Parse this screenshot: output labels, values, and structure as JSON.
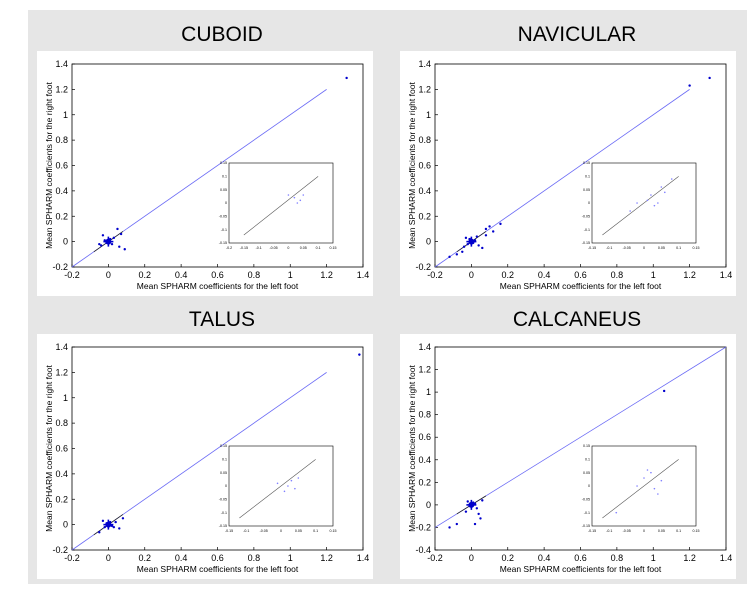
{
  "chart_data": [
    {
      "type": "scatter",
      "title": "CUBOID",
      "xlabel": "Mean SPHARM coefficients for the left foot",
      "ylabel": "Mean SPHARM coefficients for the right foot",
      "xlim": [
        -0.2,
        1.4
      ],
      "ylim": [
        -0.2,
        1.4
      ],
      "xticks": [
        "-0.2",
        "0",
        "0.2",
        "0.4",
        "0.6",
        "0.8",
        "1",
        "1.2",
        "1.4"
      ],
      "yticks": [
        "-0.2",
        "0",
        "0.2",
        "0.4",
        "0.6",
        "0.8",
        "1",
        "1.2",
        "1.4"
      ],
      "points": [
        [
          1.31,
          1.29
        ],
        [
          0.05,
          0.1
        ],
        [
          0.07,
          0.06
        ],
        [
          -0.03,
          0.05
        ],
        [
          0.09,
          -0.06
        ],
        [
          0.06,
          -0.04
        ],
        [
          -0.05,
          -0.02
        ],
        [
          0.0,
          0.0
        ],
        [
          0.01,
          0.02
        ],
        [
          -0.01,
          -0.01
        ],
        [
          0.02,
          -0.02
        ],
        [
          -0.02,
          0.01
        ],
        [
          0.03,
          0.03
        ],
        [
          -0.04,
          -0.03
        ]
      ],
      "fit_line": [
        [
          -0.2,
          -0.2
        ],
        [
          1.2,
          1.2
        ]
      ],
      "inset": {
        "xticks": [
          "-0.2",
          "-0.15",
          "-0.1",
          "-0.05",
          "0",
          "0.05",
          "0.1",
          "0.15"
        ],
        "yticks": [
          "-0.15",
          "-0.1",
          "-0.05",
          "0",
          "0.05",
          "0.1",
          "0.15"
        ],
        "xlim": [
          -0.2,
          0.15
        ],
        "ylim": [
          -0.15,
          0.15
        ],
        "points": [
          [
            0.02,
            0.02
          ],
          [
            0.04,
            0.01
          ],
          [
            0.0,
            0.03
          ],
          [
            0.05,
            0.03
          ],
          [
            0.03,
            0.0
          ]
        ],
        "fit_line": [
          [
            -0.15,
            -0.12
          ],
          [
            0.1,
            0.1
          ]
        ]
      }
    },
    {
      "type": "scatter",
      "title": "NAVICULAR",
      "xlabel": "Mean SPHARM coefficients for the left foot",
      "ylabel": "Mean SPHARM coefficients for the right foot",
      "xlim": [
        -0.2,
        1.4
      ],
      "ylim": [
        -0.2,
        1.4
      ],
      "xticks": [
        "-0.2",
        "0",
        "0.2",
        "0.4",
        "0.6",
        "0.8",
        "1",
        "1.2",
        "1.4"
      ],
      "yticks": [
        "-0.2",
        "0",
        "0.2",
        "0.4",
        "0.6",
        "0.8",
        "1",
        "1.2",
        "1.4"
      ],
      "points": [
        [
          1.31,
          1.29
        ],
        [
          1.2,
          1.23
        ],
        [
          0.16,
          0.14
        ],
        [
          0.1,
          0.12
        ],
        [
          0.08,
          0.1
        ],
        [
          0.12,
          0.08
        ],
        [
          -0.05,
          -0.08
        ],
        [
          -0.08,
          -0.1
        ],
        [
          -0.12,
          -0.12
        ],
        [
          0.06,
          -0.05
        ],
        [
          0.08,
          0.05
        ],
        [
          0.04,
          -0.03
        ],
        [
          -0.03,
          0.03
        ],
        [
          0.0,
          0.0
        ],
        [
          0.02,
          0.01
        ],
        [
          -0.02,
          -0.02
        ],
        [
          0.01,
          -0.01
        ],
        [
          -0.01,
          0.02
        ],
        [
          0.03,
          0.04
        ],
        [
          -0.04,
          -0.04
        ]
      ],
      "fit_line": [
        [
          -0.2,
          -0.2
        ],
        [
          1.2,
          1.2
        ]
      ],
      "inset": {
        "xticks": [
          "-0.15",
          "-0.1",
          "-0.05",
          "0",
          "0.05",
          "0.1",
          "0.15"
        ],
        "yticks": [
          "-0.15",
          "-0.1",
          "-0.05",
          "0",
          "0.05",
          "0.1",
          "0.15"
        ],
        "xlim": [
          -0.15,
          0.15
        ],
        "ylim": [
          -0.15,
          0.15
        ],
        "points": [
          [
            0.02,
            0.03
          ],
          [
            0.05,
            0.06
          ],
          [
            -0.02,
            0.0
          ],
          [
            0.03,
            -0.01
          ],
          [
            0.06,
            0.04
          ],
          [
            0.08,
            0.09
          ],
          [
            -0.04,
            -0.03
          ],
          [
            0.01,
            0.01
          ],
          [
            0.04,
            0.0
          ]
        ],
        "fit_line": [
          [
            -0.12,
            -0.12
          ],
          [
            0.1,
            0.1
          ]
        ]
      }
    },
    {
      "type": "scatter",
      "title": "TALUS",
      "xlabel": "Mean SPHARM coefficients for the left foot",
      "ylabel": "Mean SPHARM coefficients for the right foot",
      "xlim": [
        -0.2,
        1.4
      ],
      "ylim": [
        -0.2,
        1.4
      ],
      "xticks": [
        "-0.2",
        "0",
        "0.2",
        "0.4",
        "0.6",
        "0.8",
        "1",
        "1.2",
        "1.4"
      ],
      "yticks": [
        "-0.2",
        "0",
        "0.2",
        "0.4",
        "0.6",
        "0.8",
        "1",
        "1.2",
        "1.4"
      ],
      "points": [
        [
          1.38,
          1.34
        ],
        [
          0.08,
          0.05
        ],
        [
          0.06,
          -0.03
        ],
        [
          -0.05,
          -0.06
        ],
        [
          0.04,
          0.02
        ],
        [
          -0.03,
          0.03
        ],
        [
          0.0,
          0.0
        ],
        [
          0.02,
          -0.01
        ],
        [
          -0.01,
          0.01
        ],
        [
          0.01,
          0.02
        ],
        [
          -0.02,
          -0.02
        ],
        [
          0.03,
          -0.02
        ]
      ],
      "fit_line": [
        [
          -0.2,
          -0.2
        ],
        [
          1.2,
          1.2
        ]
      ],
      "inset": {
        "xticks": [
          "-0.15",
          "-0.1",
          "-0.05",
          "0",
          "0.05",
          "0.1",
          "0.15"
        ],
        "yticks": [
          "-0.15",
          "-0.1",
          "-0.05",
          "0",
          "0.05",
          "0.1",
          "0.15"
        ],
        "xlim": [
          -0.15,
          0.15
        ],
        "ylim": [
          -0.15,
          0.15
        ],
        "points": [
          [
            0.02,
            0.0
          ],
          [
            0.03,
            0.02
          ],
          [
            -0.01,
            0.01
          ],
          [
            0.04,
            -0.01
          ],
          [
            0.01,
            -0.02
          ],
          [
            0.05,
            0.03
          ]
        ],
        "fit_line": [
          [
            -0.12,
            -0.12
          ],
          [
            0.1,
            0.1
          ]
        ]
      }
    },
    {
      "type": "scatter",
      "title": "CALCANEUS",
      "xlabel": "Mean SPHARM coefficients for the left foot",
      "ylabel": "Mean SPHARM coefficients for the right foot",
      "xlim": [
        -0.2,
        1.4
      ],
      "ylim": [
        -0.4,
        1.4
      ],
      "xticks": [
        "-0.2",
        "0",
        "0.2",
        "0.4",
        "0.6",
        "0.8",
        "1",
        "1.2",
        "1.4"
      ],
      "yticks": [
        "-0.4",
        "-0.2",
        "0",
        "0.2",
        "0.4",
        "0.6",
        "0.8",
        "1",
        "1.2",
        "1.4"
      ],
      "points": [
        [
          1.06,
          1.01
        ],
        [
          -0.12,
          -0.2
        ],
        [
          -0.08,
          -0.17
        ],
        [
          0.02,
          -0.17
        ],
        [
          0.05,
          -0.12
        ],
        [
          0.04,
          -0.08
        ],
        [
          -0.03,
          -0.06
        ],
        [
          0.06,
          0.04
        ],
        [
          0.0,
          0.0
        ],
        [
          0.01,
          0.02
        ],
        [
          -0.01,
          -0.01
        ],
        [
          0.02,
          0.01
        ],
        [
          -0.02,
          0.03
        ],
        [
          0.03,
          -0.03
        ]
      ],
      "fit_line": [
        [
          -0.2,
          -0.2
        ],
        [
          1.4,
          1.4
        ]
      ],
      "inset": {
        "xticks": [
          "-0.15",
          "-0.1",
          "-0.05",
          "0",
          "0.05",
          "0.1",
          "0.15"
        ],
        "yticks": [
          "-0.15",
          "-0.1",
          "-0.05",
          "0",
          "0.05",
          "0.1",
          "0.15"
        ],
        "xlim": [
          -0.15,
          0.15
        ],
        "ylim": [
          -0.15,
          0.15
        ],
        "points": [
          [
            0.0,
            0.03
          ],
          [
            0.02,
            0.05
          ],
          [
            0.03,
            -0.01
          ],
          [
            -0.02,
            0.0
          ],
          [
            0.05,
            0.02
          ],
          [
            0.01,
            0.06
          ],
          [
            -0.08,
            -0.1
          ],
          [
            0.04,
            -0.03
          ]
        ],
        "fit_line": [
          [
            -0.12,
            -0.12
          ],
          [
            0.1,
            0.1
          ]
        ]
      }
    }
  ],
  "colors": {
    "figure_bg": "#e6e6e6",
    "axes_bg": "#ffffff",
    "fit_line": "#6b6bf5",
    "points": "#0000cc",
    "inset_line": "#555555",
    "inset_points": "#8080ff"
  }
}
